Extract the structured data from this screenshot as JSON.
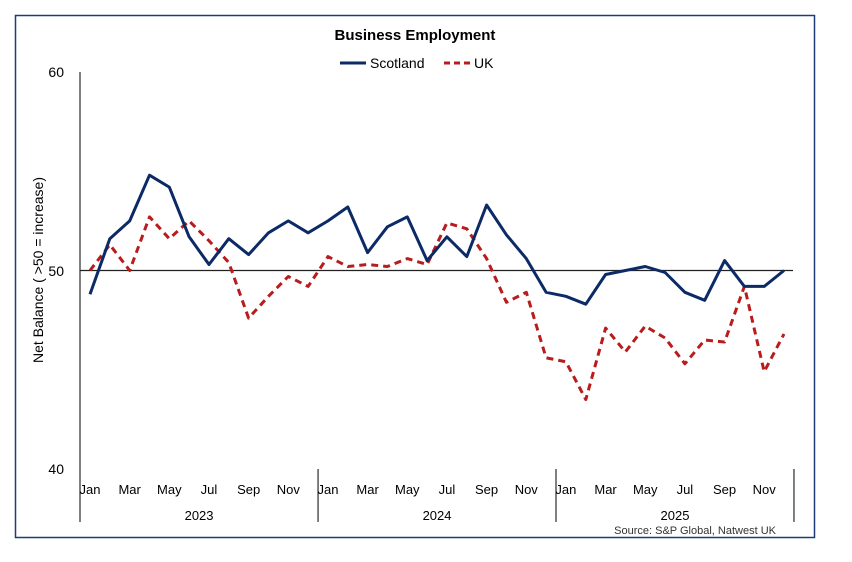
{
  "chart_data": {
    "type": "line",
    "title": "Business Employment",
    "ylabel": "Net Balance ( >50 = increase)",
    "source": "Source: S&P Global, Natwest UK",
    "ylim": [
      40,
      60
    ],
    "yticks": [
      "40",
      "50",
      "60"
    ],
    "reference_line": 50,
    "month_labels": [
      "Jan",
      "Mar",
      "May",
      "Jul",
      "Sep",
      "Nov",
      "Jan",
      "Mar",
      "May",
      "Jul",
      "Sep",
      "Nov",
      "Jan",
      "Mar",
      "May",
      "Jul",
      "Sep",
      "Nov"
    ],
    "years": [
      "2023",
      "2024",
      "2025"
    ],
    "legend_position": "top",
    "series": [
      {
        "name": "Scotland",
        "color": "#0b2a66",
        "style": "solid",
        "values": [
          48.8,
          51.6,
          52.5,
          54.8,
          54.2,
          51.7,
          50.3,
          51.6,
          50.8,
          51.9,
          52.5,
          51.9,
          52.5,
          53.2,
          50.9,
          52.2,
          52.7,
          50.5,
          51.7,
          50.7,
          53.3,
          51.8,
          50.6,
          48.9,
          48.7,
          48.3,
          49.8,
          50.0,
          50.2,
          49.9,
          48.9,
          48.5,
          50.5,
          49.2,
          49.2,
          50.0
        ]
      },
      {
        "name": "UK",
        "color": "#b81c1c",
        "style": "dashed",
        "values": [
          50.0,
          51.3,
          50.0,
          52.7,
          51.6,
          52.5,
          51.5,
          50.4,
          47.6,
          48.7,
          49.7,
          49.2,
          50.7,
          50.2,
          50.3,
          50.2,
          50.6,
          50.3,
          52.4,
          52.1,
          50.6,
          48.4,
          48.9,
          45.6,
          45.4,
          43.5,
          47.1,
          45.9,
          47.2,
          46.6,
          45.3,
          46.5,
          46.4,
          49.2,
          44.9,
          46.8
        ]
      }
    ]
  }
}
